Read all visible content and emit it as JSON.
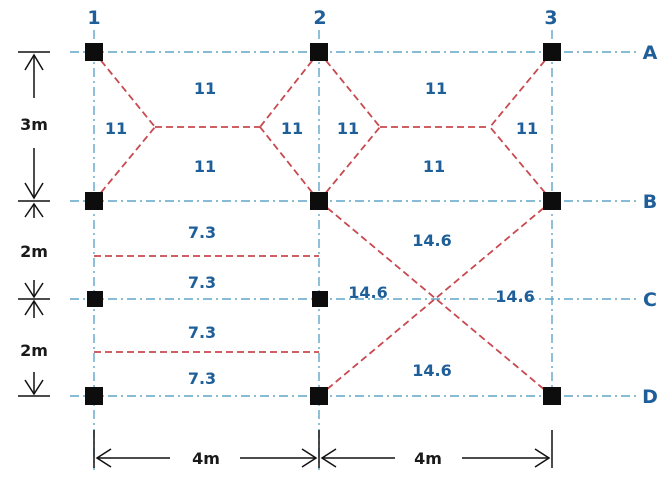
{
  "grid": {
    "column_labels": [
      "1",
      "2",
      "3"
    ],
    "row_labels": [
      "A",
      "B",
      "C",
      "D"
    ]
  },
  "load_labels": {
    "panel_1_top": "11",
    "panel_1_left": "11",
    "panel_1_right": "11",
    "panel_1_bottom": "11",
    "panel_2_top": "11",
    "panel_2_left": "11",
    "panel_2_right": "11",
    "panel_2_bottom": "11",
    "strip_1": "7.3",
    "strip_2": "7.3",
    "strip_3": "7.3",
    "strip_4": "7.3",
    "panel_3_top": "14.6",
    "panel_3_left": "14.6",
    "panel_3_right": "14.6",
    "panel_3_bottom": "14.6"
  },
  "dimensions": {
    "span_a_b": "3m",
    "span_b_c": "2m",
    "span_c_d": "2m",
    "span_1_2": "4m",
    "span_2_3": "4m"
  },
  "colors": {
    "grid_line": "#5fa6c9",
    "yield_line": "#c8494f",
    "label": "#1f5f99",
    "column": "#0d0d0d"
  }
}
